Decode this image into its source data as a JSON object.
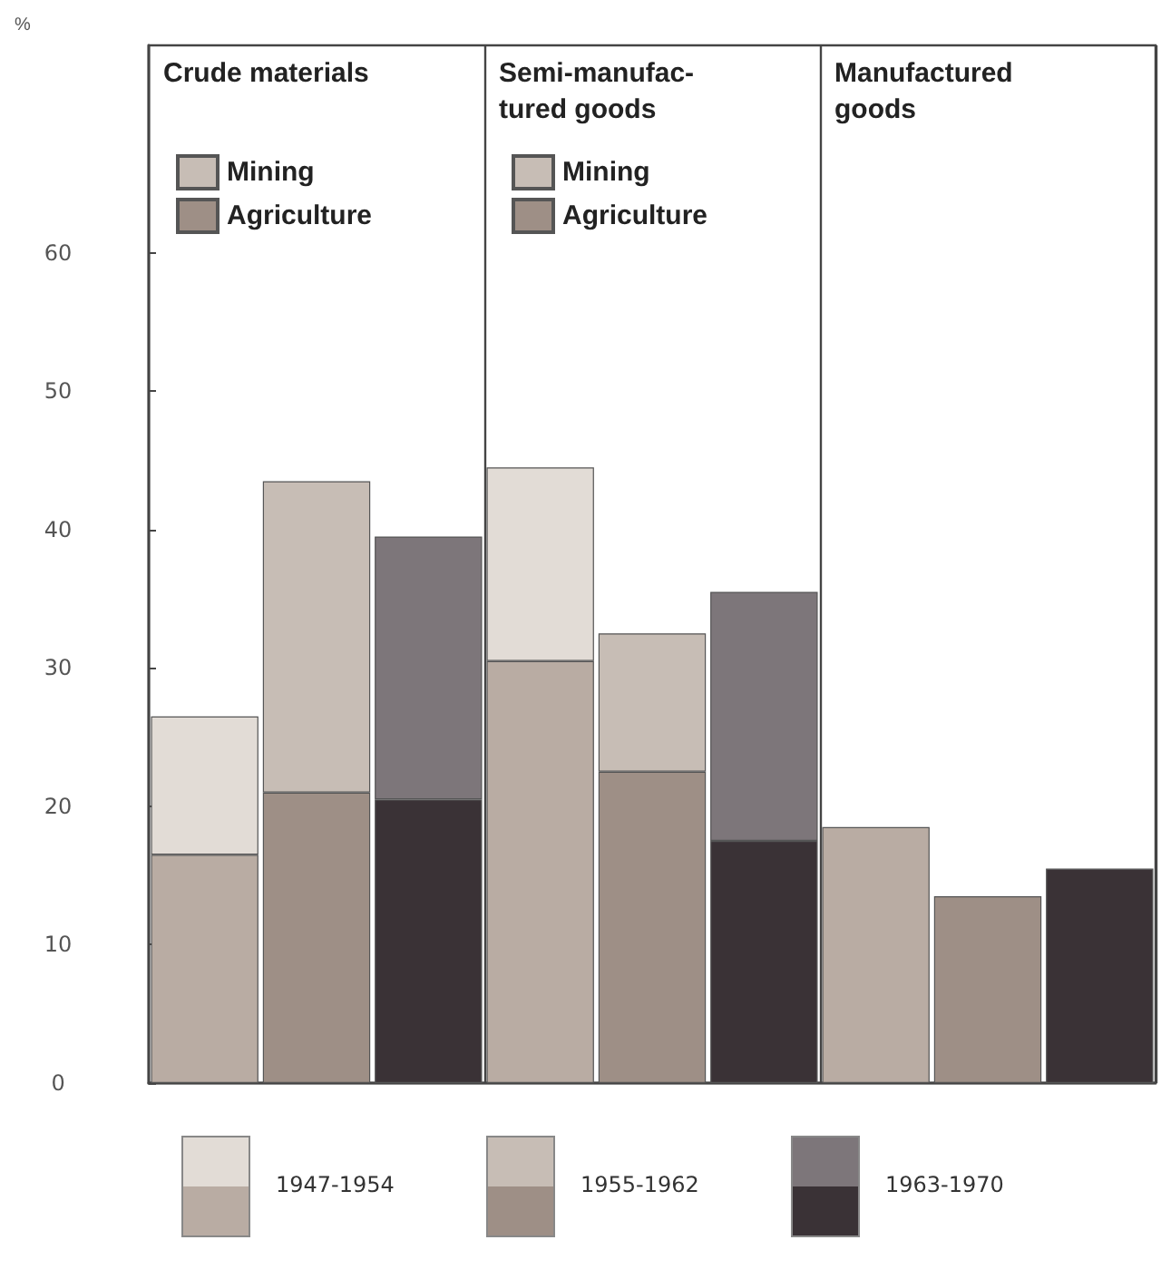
{
  "chart_data": {
    "type": "bar",
    "ylabel": "%",
    "stacked": true,
    "categories": [
      null,
      null,
      null,
      null,
      null,
      null,
      null,
      null,
      null
    ],
    "ylim": [
      0,
      75
    ],
    "yticks": [
      0,
      10,
      20,
      30,
      40,
      50,
      60
    ],
    "legend": "top left",
    "grid": "x",
    "series": [
      {
        "name": "Agriculture",
        "color": "#9e8f86",
        "colors": [
          "#b9aca3",
          "#9e8f86",
          "#3a3236",
          "#b9aca3",
          "#9e8f86",
          "#3a3236",
          null,
          null,
          null
        ],
        "values": [
          16.5,
          21,
          20.5,
          30.5,
          22.5,
          17.5,
          null,
          null,
          null
        ]
      },
      {
        "name": "Mining",
        "color": "#c7bdb5",
        "colors": [
          "#e2dcd6",
          "#c7bdb5",
          "#7d767a",
          "#e2dcd6",
          "#c7bdb5",
          "#7d767a",
          null,
          null,
          null
        ],
        "values": [
          10,
          22.5,
          19,
          14,
          10,
          18,
          null,
          null,
          null
        ]
      },
      {
        "colors": [
          null,
          null,
          null,
          null,
          null,
          null,
          "#b9aca3",
          "#9e8f86",
          "#3a3236"
        ],
        "values": [
          null,
          null,
          null,
          null,
          null,
          null,
          18.5,
          13.5,
          15.5
        ]
      }
    ],
    "annotations": [
      "Crude materials",
      "Semi-manufac-\ntured goods",
      "Manufactured\ngoods",
      "1947-1954",
      "1955-1962",
      "1963-1970"
    ]
  }
}
